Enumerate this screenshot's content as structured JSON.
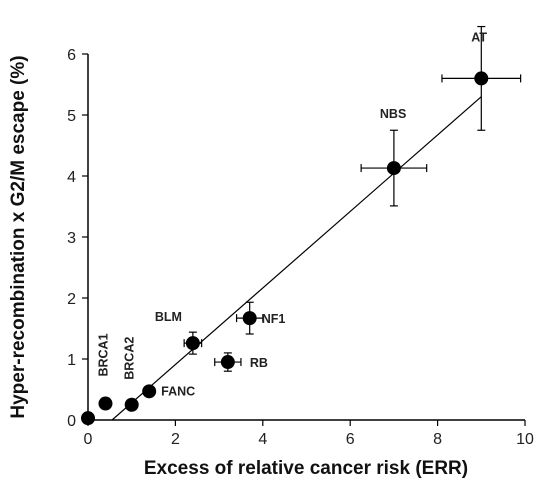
{
  "chart_data": {
    "type": "scatter",
    "title": "",
    "xlabel": "Excess of relative cancer risk (ERR)",
    "ylabel": "Hyper-recombination x G2/M escape (%)",
    "xlim": [
      0,
      10
    ],
    "ylim": [
      0,
      6
    ],
    "x_ticks": [
      "0",
      "2",
      "4",
      "6",
      "8",
      "10"
    ],
    "y_ticks": [
      "0",
      "1",
      "2",
      "3",
      "4",
      "5",
      "6"
    ],
    "grid": false,
    "legend": "none",
    "points": [
      {
        "label": "",
        "x": 0.0,
        "y": 0.03,
        "xerr": 0,
        "yerr": 0
      },
      {
        "label": "BRCA1",
        "x": 0.4,
        "y": 0.27,
        "xerr": 0,
        "yerr": 0
      },
      {
        "label": "BRCA2",
        "x": 1.0,
        "y": 0.25,
        "xerr": 0,
        "yerr": 0
      },
      {
        "label": "FANC",
        "x": 1.4,
        "y": 0.47,
        "xerr": 0,
        "yerr": 0
      },
      {
        "label": "BLM",
        "x": 2.4,
        "y": 1.26,
        "xerr": 0.2,
        "yerr": 0.18
      },
      {
        "label": "NF1",
        "x": 3.7,
        "y": 1.67,
        "xerr": 0.3,
        "yerr": 0.26
      },
      {
        "label": "RB",
        "x": 3.2,
        "y": 0.95,
        "xerr": 0.3,
        "yerr": 0.15
      },
      {
        "label": "NBS",
        "x": 7.0,
        "y": 4.13,
        "xerr": 0.75,
        "yerr": 0.62
      },
      {
        "label": "AT",
        "x": 9.0,
        "y": 5.6,
        "xerr": 0.9,
        "yerr": 0.85
      }
    ],
    "fit_line": {
      "x": [
        0.55,
        9.0
      ],
      "y": [
        0.0,
        5.3
      ]
    }
  }
}
